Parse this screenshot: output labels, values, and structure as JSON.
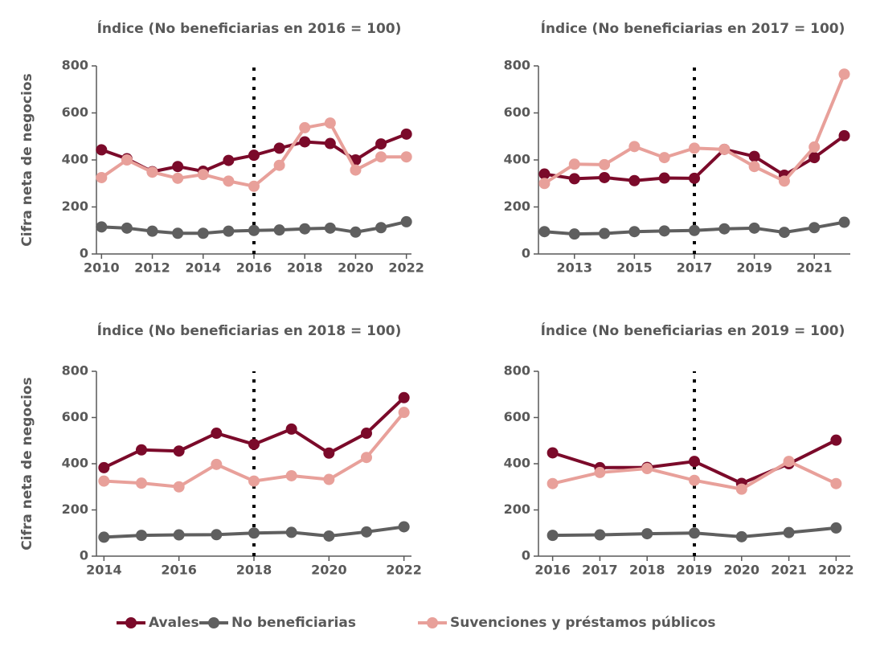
{
  "chart_data": [
    {
      "type": "line",
      "title": "Índice (No beneficiarias en 2016 = 100)",
      "y_label": "Cifra neta de negocios",
      "x": [
        2010,
        2011,
        2012,
        2013,
        2014,
        2015,
        2016,
        2017,
        2018,
        2019,
        2020,
        2021,
        2022
      ],
      "xlim": [
        2009.8,
        2022.2
      ],
      "xticks": [
        2010,
        2012,
        2014,
        2016,
        2018,
        2020,
        2022
      ],
      "ylim": [
        0,
        800
      ],
      "yticks": [
        0,
        200,
        400,
        600,
        800
      ],
      "reference_x": 2016,
      "series": [
        {
          "name": "Avales",
          "color": "#7b0a2a",
          "values": [
            443,
            405,
            350,
            372,
            352,
            398,
            420,
            450,
            477,
            470,
            400,
            468,
            510
          ]
        },
        {
          "name": "No beneficiarias",
          "color": "#5f5f5f",
          "values": [
            115,
            110,
            97,
            88,
            88,
            97,
            100,
            102,
            107,
            110,
            93,
            112,
            137
          ]
        },
        {
          "name": "Suvenciones y préstamos públicos",
          "color": "#e8a09a",
          "values": [
            325,
            400,
            348,
            322,
            338,
            310,
            288,
            377,
            537,
            557,
            357,
            413,
            413
          ]
        }
      ]
    },
    {
      "type": "line",
      "title": "Índice (No beneficiarias en 2017 = 100)",
      "x": [
        2012,
        2013,
        2014,
        2015,
        2016,
        2017,
        2018,
        2019,
        2020,
        2021,
        2022
      ],
      "xlim": [
        2011.8,
        2022.2
      ],
      "xticks": [
        2013,
        2015,
        2017,
        2019,
        2021
      ],
      "ylim": [
        0,
        800
      ],
      "yticks": [
        0,
        200,
        400,
        600,
        800
      ],
      "reference_x": 2017,
      "series": [
        {
          "color": "#7b0a2a",
          "values": [
            340,
            320,
            325,
            312,
            323,
            322,
            445,
            415,
            335,
            410,
            503
          ]
        },
        {
          "color": "#5f5f5f",
          "values": [
            95,
            85,
            87,
            95,
            98,
            100,
            107,
            110,
            92,
            112,
            135
          ]
        },
        {
          "color": "#e8a09a",
          "values": [
            300,
            382,
            380,
            457,
            410,
            450,
            445,
            372,
            310,
            455,
            765
          ]
        }
      ]
    },
    {
      "type": "line",
      "title": "Índice (No beneficiarias en 2018 = 100)",
      "y_label": "Cifra neta de negocios",
      "x": [
        2014,
        2015,
        2016,
        2017,
        2018,
        2019,
        2020,
        2021,
        2022
      ],
      "xlim": [
        2013.8,
        2022.2
      ],
      "xticks": [
        2014,
        2016,
        2018,
        2020,
        2022
      ],
      "ylim": [
        0,
        800
      ],
      "yticks": [
        0,
        200,
        400,
        600,
        800
      ],
      "reference_x": 2018,
      "series": [
        {
          "color": "#7b0a2a",
          "values": [
            383,
            460,
            455,
            532,
            484,
            550,
            446,
            532,
            686
          ]
        },
        {
          "color": "#5f5f5f",
          "values": [
            82,
            90,
            92,
            93,
            100,
            103,
            87,
            105,
            127
          ]
        },
        {
          "color": "#e8a09a",
          "values": [
            325,
            316,
            300,
            397,
            325,
            348,
            332,
            427,
            622
          ]
        }
      ]
    },
    {
      "type": "line",
      "title": "Índice (No beneficiarias en 2019 = 100)",
      "x": [
        2016,
        2017,
        2018,
        2019,
        2020,
        2021,
        2022
      ],
      "xlim": [
        2015.7,
        2022.3
      ],
      "xticks": [
        2016,
        2017,
        2018,
        2019,
        2020,
        2021,
        2022
      ],
      "ylim": [
        0,
        800
      ],
      "yticks": [
        0,
        200,
        400,
        600,
        800
      ],
      "reference_x": 2019,
      "series": [
        {
          "color": "#7b0a2a",
          "values": [
            447,
            383,
            384,
            410,
            315,
            400,
            502
          ]
        },
        {
          "color": "#5f5f5f",
          "values": [
            90,
            92,
            97,
            100,
            84,
            102,
            122
          ]
        },
        {
          "color": "#e8a09a",
          "values": [
            314,
            362,
            379,
            328,
            290,
            410,
            314
          ]
        }
      ]
    }
  ]
}
